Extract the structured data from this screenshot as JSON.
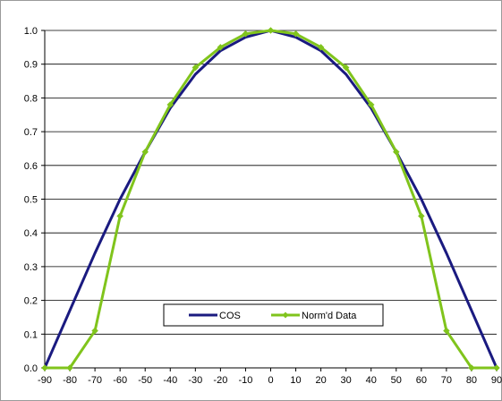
{
  "chart_data": {
    "type": "line",
    "title": "",
    "xlabel": "",
    "ylabel": "",
    "xlim": [
      -90,
      90
    ],
    "ylim": [
      0,
      1.0
    ],
    "grid": "horizontal",
    "legend_position": "bottom-center",
    "x": [
      -90,
      -80,
      -70,
      -60,
      -50,
      -40,
      -30,
      -20,
      -10,
      0,
      10,
      20,
      30,
      40,
      50,
      60,
      70,
      80,
      90
    ],
    "x_tick_labels": [
      "-90",
      "-80",
      "-70",
      "-60",
      "-50",
      "-40",
      "-30",
      "-20",
      "-10",
      "0",
      "10",
      "20",
      "30",
      "40",
      "50",
      "60",
      "70",
      "80",
      "90"
    ],
    "y_tick_labels": [
      "0.0",
      "0.1",
      "0.2",
      "0.3",
      "0.4",
      "0.5",
      "0.6",
      "0.7",
      "0.8",
      "0.9",
      "1.0"
    ],
    "y_ticks": [
      0,
      0.1,
      0.2,
      0.3,
      0.4,
      0.5,
      0.6,
      0.7,
      0.8,
      0.9,
      1.0
    ],
    "series": [
      {
        "name": "COS",
        "color": "#1a1a80",
        "marker": "none",
        "values": [
          0.0,
          0.17,
          0.34,
          0.5,
          0.64,
          0.77,
          0.87,
          0.94,
          0.98,
          1.0,
          0.98,
          0.94,
          0.87,
          0.77,
          0.64,
          0.5,
          0.34,
          0.17,
          0.0
        ]
      },
      {
        "name": "Norm'd Data",
        "color": "#80c41c",
        "marker": "diamond",
        "values": [
          0.0,
          0.0,
          0.11,
          0.45,
          0.64,
          0.78,
          0.89,
          0.95,
          0.99,
          1.0,
          0.99,
          0.95,
          0.89,
          0.78,
          0.64,
          0.45,
          0.11,
          0.0,
          0.0
        ]
      }
    ]
  }
}
